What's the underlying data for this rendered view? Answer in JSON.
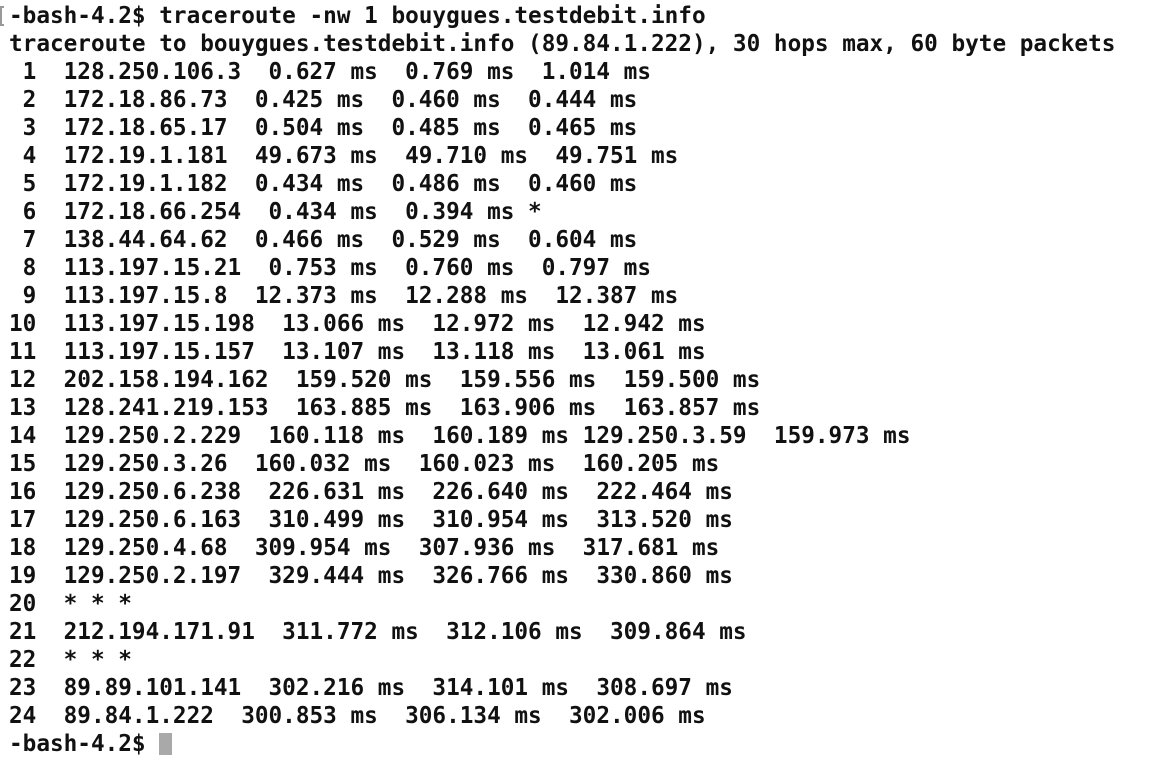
{
  "terminal": {
    "lines": [
      "-bash-4.2$ traceroute -nw 1 bouygues.testdebit.info",
      "traceroute to bouygues.testdebit.info (89.84.1.222), 30 hops max, 60 byte packets",
      " 1  128.250.106.3  0.627 ms  0.769 ms  1.014 ms",
      " 2  172.18.86.73  0.425 ms  0.460 ms  0.444 ms",
      " 3  172.18.65.17  0.504 ms  0.485 ms  0.465 ms",
      " 4  172.19.1.181  49.673 ms  49.710 ms  49.751 ms",
      " 5  172.19.1.182  0.434 ms  0.486 ms  0.460 ms",
      " 6  172.18.66.254  0.434 ms  0.394 ms *",
      " 7  138.44.64.62  0.466 ms  0.529 ms  0.604 ms",
      " 8  113.197.15.21  0.753 ms  0.760 ms  0.797 ms",
      " 9  113.197.15.8  12.373 ms  12.288 ms  12.387 ms",
      "10  113.197.15.198  13.066 ms  12.972 ms  12.942 ms",
      "11  113.197.15.157  13.107 ms  13.118 ms  13.061 ms",
      "12  202.158.194.162  159.520 ms  159.556 ms  159.500 ms",
      "13  128.241.219.153  163.885 ms  163.906 ms  163.857 ms",
      "14  129.250.2.229  160.118 ms  160.189 ms 129.250.3.59  159.973 ms",
      "15  129.250.3.26  160.032 ms  160.023 ms  160.205 ms",
      "16  129.250.6.238  226.631 ms  226.640 ms  222.464 ms",
      "17  129.250.6.163  310.499 ms  310.954 ms  313.520 ms",
      "18  129.250.4.68  309.954 ms  307.936 ms  317.681 ms",
      "19  129.250.2.197  329.444 ms  326.766 ms  330.860 ms",
      "20  * * *",
      "21  212.194.171.91  311.772 ms  312.106 ms  309.864 ms",
      "22  * * *",
      "23  89.89.101.141  302.216 ms  314.101 ms  308.697 ms",
      "24  89.84.1.222  300.853 ms  306.134 ms  302.006 ms",
      "-bash-4.2$ "
    ]
  }
}
